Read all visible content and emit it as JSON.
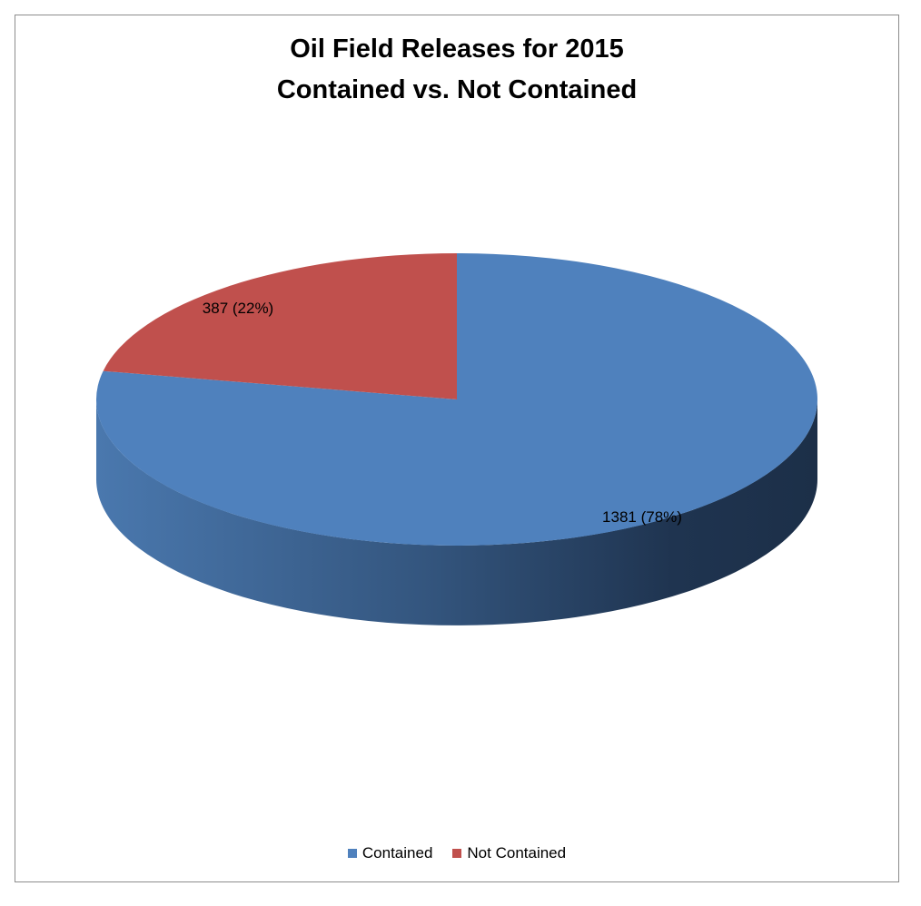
{
  "chart_data": {
    "type": "pie",
    "title_line1": "Oil Field Releases for 2015",
    "title_line2": "Contained vs. Not Contained",
    "categories": [
      "Contained",
      "Not Contained"
    ],
    "values": [
      1381,
      387
    ],
    "percent_labels": [
      "(78%)",
      "(22%)"
    ],
    "colors": [
      "#4f81bd",
      "#c0504d"
    ],
    "legend_position": "bottom",
    "style": "3d"
  }
}
